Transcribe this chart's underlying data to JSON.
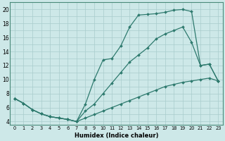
{
  "xlabel": "Humidex (Indice chaleur)",
  "bg_color": "#cde8e8",
  "line_color": "#2e7a6e",
  "grid_color": "#a8cccc",
  "xlim": [
    -0.5,
    23.5
  ],
  "ylim": [
    3.5,
    21.0
  ],
  "xticks": [
    0,
    1,
    2,
    3,
    4,
    5,
    6,
    7,
    8,
    9,
    10,
    11,
    12,
    13,
    14,
    15,
    16,
    17,
    18,
    19,
    20,
    21,
    22,
    23
  ],
  "yticks": [
    4,
    6,
    8,
    10,
    12,
    14,
    16,
    18,
    20
  ],
  "series": [
    {
      "x": [
        0,
        1,
        2,
        3,
        4,
        5,
        6,
        7,
        8,
        9,
        10,
        11,
        12,
        13,
        14,
        15,
        16,
        17,
        18,
        19,
        20,
        21,
        22,
        23
      ],
      "y": [
        7.3,
        6.6,
        5.7,
        5.1,
        4.7,
        4.5,
        4.3,
        4.0,
        6.5,
        10.0,
        12.8,
        13.0,
        14.8,
        17.5,
        19.2,
        19.3,
        19.4,
        19.6,
        19.9,
        20.0,
        19.7,
        12.0,
        12.2,
        9.8
      ]
    },
    {
      "x": [
        0,
        1,
        2,
        3,
        4,
        5,
        6,
        7,
        8,
        9,
        10,
        11,
        12,
        13,
        14,
        15,
        16,
        17,
        18,
        19,
        20,
        21,
        22,
        23
      ],
      "y": [
        7.3,
        6.6,
        5.7,
        5.1,
        4.7,
        4.5,
        4.3,
        4.0,
        5.5,
        6.5,
        8.0,
        9.5,
        11.0,
        12.5,
        13.5,
        14.5,
        15.8,
        16.5,
        17.0,
        17.5,
        15.3,
        12.0,
        12.2,
        9.8
      ]
    },
    {
      "x": [
        0,
        1,
        2,
        3,
        4,
        5,
        6,
        7,
        8,
        9,
        10,
        11,
        12,
        13,
        14,
        15,
        16,
        17,
        18,
        19,
        20,
        21,
        22,
        23
      ],
      "y": [
        7.3,
        6.6,
        5.7,
        5.1,
        4.7,
        4.5,
        4.3,
        4.0,
        4.5,
        5.0,
        5.5,
        6.0,
        6.5,
        7.0,
        7.5,
        8.0,
        8.5,
        9.0,
        9.3,
        9.6,
        9.8,
        10.0,
        10.2,
        9.8
      ]
    }
  ]
}
